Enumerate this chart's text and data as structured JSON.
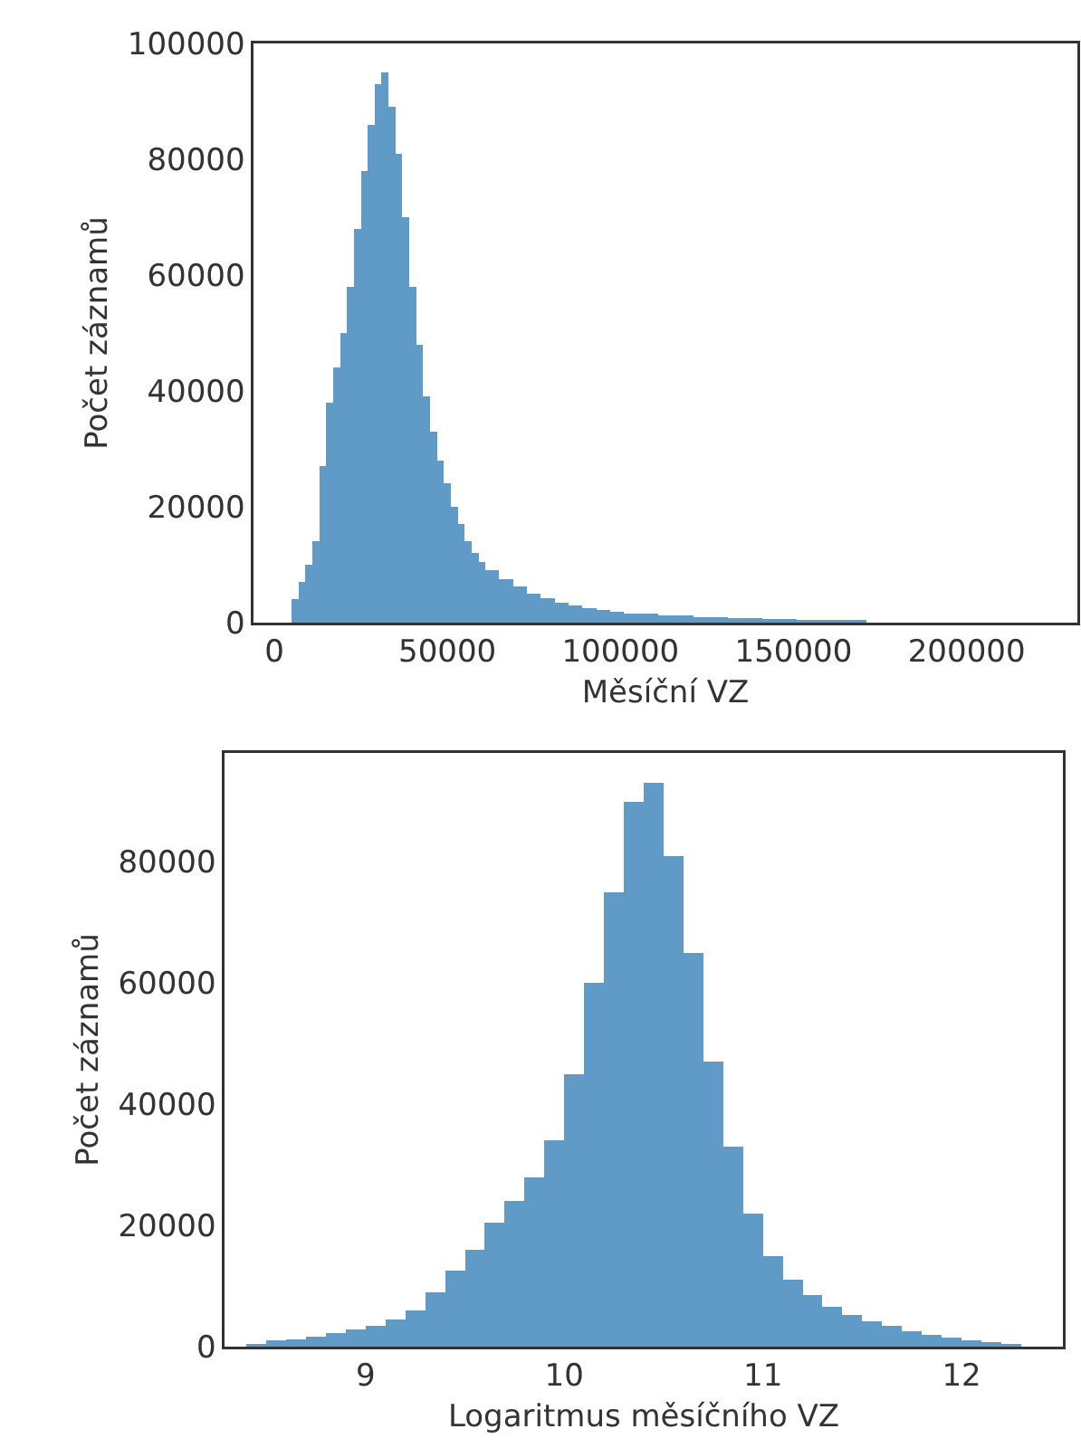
{
  "chart_data": [
    {
      "type": "histogram",
      "xlabel": "Měsíční VZ",
      "ylabel": "Počet záznamů",
      "color": "#5f9bc6",
      "bins": [
        5000,
        7000,
        9000,
        11000,
        13000,
        15000,
        17000,
        19000,
        21000,
        23000,
        25000,
        27000,
        29000,
        31000,
        33000,
        35000,
        37000,
        39000,
        41000,
        43000,
        45000,
        47000,
        49000,
        51000,
        53000,
        55000,
        57000,
        59000,
        61000,
        65000,
        69000,
        73000,
        77000,
        81000,
        85000,
        89000,
        93000,
        97000,
        101000,
        111000,
        121000,
        131000,
        141000,
        151000,
        161000,
        171000
      ],
      "values": [
        4000,
        7000,
        10000,
        14000,
        27000,
        38000,
        44000,
        50000,
        58000,
        68000,
        78000,
        86000,
        93000,
        95000,
        89000,
        81000,
        70000,
        58000,
        48000,
        39000,
        33000,
        28000,
        24000,
        20000,
        17000,
        14000,
        12000,
        10500,
        9000,
        7500,
        6200,
        5000,
        4200,
        3500,
        3000,
        2500,
        2200,
        1900,
        1500,
        1200,
        1000,
        800,
        600,
        500,
        400
      ],
      "xlim": [
        -6000,
        232000
      ],
      "xticks": [
        0,
        50000,
        100000,
        150000,
        200000
      ],
      "ylim": [
        0,
        100000
      ],
      "yticks": [
        0,
        20000,
        40000,
        60000,
        80000,
        100000
      ]
    },
    {
      "type": "histogram",
      "xlabel": "Logaritmus měsíčního VZ",
      "ylabel": "Počet záznamů",
      "color": "#5f9bc6",
      "bins": [
        8.4,
        8.5,
        8.6,
        8.7,
        8.8,
        8.9,
        9.0,
        9.1,
        9.2,
        9.3,
        9.4,
        9.5,
        9.6,
        9.7,
        9.8,
        9.9,
        10.0,
        10.1,
        10.2,
        10.3,
        10.4,
        10.5,
        10.6,
        10.7,
        10.8,
        10.9,
        11.0,
        11.1,
        11.2,
        11.3,
        11.4,
        11.5,
        11.6,
        11.7,
        11.8,
        11.9,
        12.0,
        12.1,
        12.2,
        12.3
      ],
      "values": [
        500,
        1000,
        1200,
        1700,
        2200,
        2800,
        3500,
        4500,
        6000,
        9000,
        12500,
        16000,
        20500,
        24000,
        28000,
        34000,
        45000,
        60000,
        75000,
        90000,
        93000,
        81000,
        65000,
        47000,
        33000,
        22000,
        15000,
        11000,
        8500,
        6500,
        5200,
        4200,
        3400,
        2600,
        2000,
        1500,
        1100,
        800,
        500
      ],
      "xlim": [
        8.29,
        12.51
      ],
      "xticks": [
        9,
        10,
        11,
        12
      ],
      "ylim": [
        0,
        98000
      ],
      "yticks": [
        0,
        20000,
        40000,
        60000,
        80000
      ]
    }
  ]
}
